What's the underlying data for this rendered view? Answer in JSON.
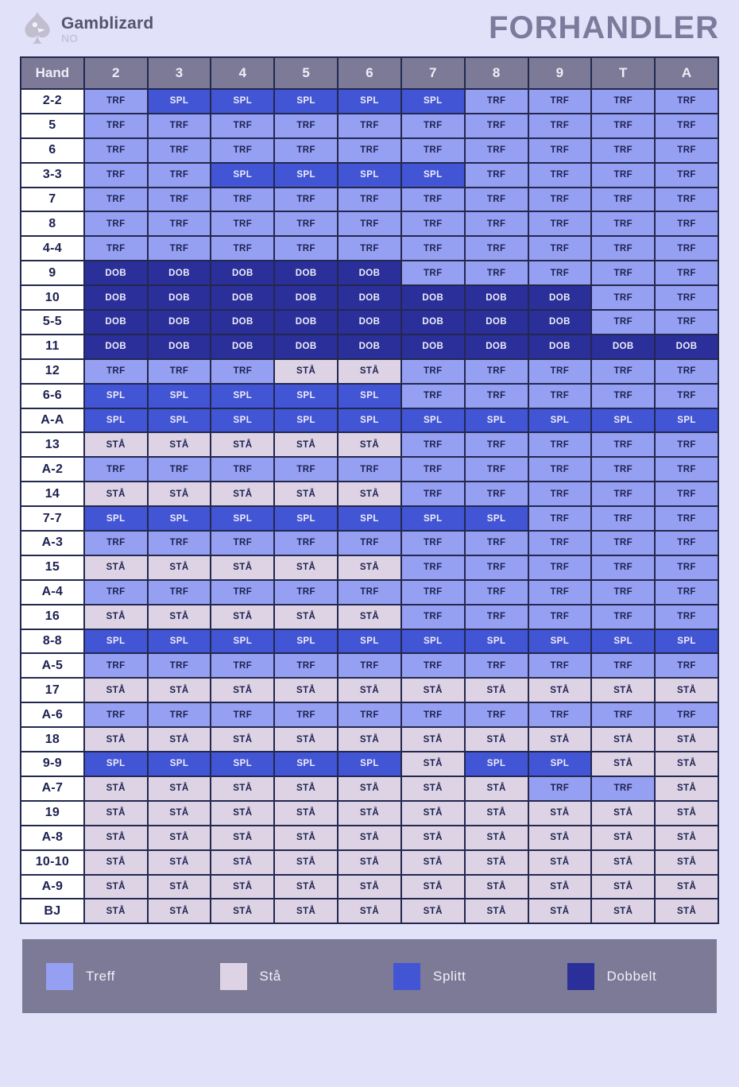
{
  "logo": {
    "brand": "Gamblizard",
    "country": "NO"
  },
  "title": "FORHANDLER",
  "colors": {
    "page_bg": "#E1E2FA",
    "panel": "#7C7A96",
    "border": "#23284F",
    "hand_bg": "#FFFFFF",
    "text_dark": "#1C2150",
    "text_light": "#EFEDF8",
    "TRF": "#96A0F2",
    "STÅ": "#DDD3E4",
    "SPL": "#4255D5",
    "DOB": "#2A2F9A"
  },
  "chart_data": {
    "type": "table",
    "title": "FORHANDLER",
    "corner_label": "Hand",
    "dealer_cards": [
      "2",
      "3",
      "4",
      "5",
      "6",
      "7",
      "8",
      "9",
      "T",
      "A"
    ],
    "rows": [
      {
        "hand": "2-2",
        "actions": [
          "TRF",
          "SPL",
          "SPL",
          "SPL",
          "SPL",
          "SPL",
          "TRF",
          "TRF",
          "TRF",
          "TRF"
        ]
      },
      {
        "hand": "5",
        "actions": [
          "TRF",
          "TRF",
          "TRF",
          "TRF",
          "TRF",
          "TRF",
          "TRF",
          "TRF",
          "TRF",
          "TRF"
        ]
      },
      {
        "hand": "6",
        "actions": [
          "TRF",
          "TRF",
          "TRF",
          "TRF",
          "TRF",
          "TRF",
          "TRF",
          "TRF",
          "TRF",
          "TRF"
        ]
      },
      {
        "hand": "3-3",
        "actions": [
          "TRF",
          "TRF",
          "SPL",
          "SPL",
          "SPL",
          "SPL",
          "TRF",
          "TRF",
          "TRF",
          "TRF"
        ]
      },
      {
        "hand": "7",
        "actions": [
          "TRF",
          "TRF",
          "TRF",
          "TRF",
          "TRF",
          "TRF",
          "TRF",
          "TRF",
          "TRF",
          "TRF"
        ]
      },
      {
        "hand": "8",
        "actions": [
          "TRF",
          "TRF",
          "TRF",
          "TRF",
          "TRF",
          "TRF",
          "TRF",
          "TRF",
          "TRF",
          "TRF"
        ]
      },
      {
        "hand": "4-4",
        "actions": [
          "TRF",
          "TRF",
          "TRF",
          "TRF",
          "TRF",
          "TRF",
          "TRF",
          "TRF",
          "TRF",
          "TRF"
        ]
      },
      {
        "hand": "9",
        "actions": [
          "DOB",
          "DOB",
          "DOB",
          "DOB",
          "DOB",
          "TRF",
          "TRF",
          "TRF",
          "TRF",
          "TRF"
        ]
      },
      {
        "hand": "10",
        "actions": [
          "DOB",
          "DOB",
          "DOB",
          "DOB",
          "DOB",
          "DOB",
          "DOB",
          "DOB",
          "TRF",
          "TRF"
        ]
      },
      {
        "hand": "5-5",
        "actions": [
          "DOB",
          "DOB",
          "DOB",
          "DOB",
          "DOB",
          "DOB",
          "DOB",
          "DOB",
          "TRF",
          "TRF"
        ]
      },
      {
        "hand": "11",
        "actions": [
          "DOB",
          "DOB",
          "DOB",
          "DOB",
          "DOB",
          "DOB",
          "DOB",
          "DOB",
          "DOB",
          "DOB"
        ]
      },
      {
        "hand": "12",
        "actions": [
          "TRF",
          "TRF",
          "TRF",
          "STÅ",
          "STÅ",
          "TRF",
          "TRF",
          "TRF",
          "TRF",
          "TRF"
        ]
      },
      {
        "hand": "6-6",
        "actions": [
          "SPL",
          "SPL",
          "SPL",
          "SPL",
          "SPL",
          "TRF",
          "TRF",
          "TRF",
          "TRF",
          "TRF"
        ]
      },
      {
        "hand": "A-A",
        "actions": [
          "SPL",
          "SPL",
          "SPL",
          "SPL",
          "SPL",
          "SPL",
          "SPL",
          "SPL",
          "SPL",
          "SPL"
        ]
      },
      {
        "hand": "13",
        "actions": [
          "STÅ",
          "STÅ",
          "STÅ",
          "STÅ",
          "STÅ",
          "TRF",
          "TRF",
          "TRF",
          "TRF",
          "TRF"
        ]
      },
      {
        "hand": "A-2",
        "actions": [
          "TRF",
          "TRF",
          "TRF",
          "TRF",
          "TRF",
          "TRF",
          "TRF",
          "TRF",
          "TRF",
          "TRF"
        ]
      },
      {
        "hand": "14",
        "actions": [
          "STÅ",
          "STÅ",
          "STÅ",
          "STÅ",
          "STÅ",
          "TRF",
          "TRF",
          "TRF",
          "TRF",
          "TRF"
        ]
      },
      {
        "hand": "7-7",
        "actions": [
          "SPL",
          "SPL",
          "SPL",
          "SPL",
          "SPL",
          "SPL",
          "SPL",
          "TRF",
          "TRF",
          "TRF"
        ]
      },
      {
        "hand": "A-3",
        "actions": [
          "TRF",
          "TRF",
          "TRF",
          "TRF",
          "TRF",
          "TRF",
          "TRF",
          "TRF",
          "TRF",
          "TRF"
        ]
      },
      {
        "hand": "15",
        "actions": [
          "STÅ",
          "STÅ",
          "STÅ",
          "STÅ",
          "STÅ",
          "TRF",
          "TRF",
          "TRF",
          "TRF",
          "TRF"
        ]
      },
      {
        "hand": "A-4",
        "actions": [
          "TRF",
          "TRF",
          "TRF",
          "TRF",
          "TRF",
          "TRF",
          "TRF",
          "TRF",
          "TRF",
          "TRF"
        ]
      },
      {
        "hand": "16",
        "actions": [
          "STÅ",
          "STÅ",
          "STÅ",
          "STÅ",
          "STÅ",
          "TRF",
          "TRF",
          "TRF",
          "TRF",
          "TRF"
        ]
      },
      {
        "hand": "8-8",
        "actions": [
          "SPL",
          "SPL",
          "SPL",
          "SPL",
          "SPL",
          "SPL",
          "SPL",
          "SPL",
          "SPL",
          "SPL"
        ]
      },
      {
        "hand": "A-5",
        "actions": [
          "TRF",
          "TRF",
          "TRF",
          "TRF",
          "TRF",
          "TRF",
          "TRF",
          "TRF",
          "TRF",
          "TRF"
        ]
      },
      {
        "hand": "17",
        "actions": [
          "STÅ",
          "STÅ",
          "STÅ",
          "STÅ",
          "STÅ",
          "STÅ",
          "STÅ",
          "STÅ",
          "STÅ",
          "STÅ"
        ]
      },
      {
        "hand": "A-6",
        "actions": [
          "TRF",
          "TRF",
          "TRF",
          "TRF",
          "TRF",
          "TRF",
          "TRF",
          "TRF",
          "TRF",
          "TRF"
        ]
      },
      {
        "hand": "18",
        "actions": [
          "STÅ",
          "STÅ",
          "STÅ",
          "STÅ",
          "STÅ",
          "STÅ",
          "STÅ",
          "STÅ",
          "STÅ",
          "STÅ"
        ]
      },
      {
        "hand": "9-9",
        "actions": [
          "SPL",
          "SPL",
          "SPL",
          "SPL",
          "SPL",
          "STÅ",
          "SPL",
          "SPL",
          "STÅ",
          "STÅ"
        ]
      },
      {
        "hand": "A-7",
        "actions": [
          "STÅ",
          "STÅ",
          "STÅ",
          "STÅ",
          "STÅ",
          "STÅ",
          "STÅ",
          "TRF",
          "TRF",
          "STÅ"
        ]
      },
      {
        "hand": "19",
        "actions": [
          "STÅ",
          "STÅ",
          "STÅ",
          "STÅ",
          "STÅ",
          "STÅ",
          "STÅ",
          "STÅ",
          "STÅ",
          "STÅ"
        ]
      },
      {
        "hand": "A-8",
        "actions": [
          "STÅ",
          "STÅ",
          "STÅ",
          "STÅ",
          "STÅ",
          "STÅ",
          "STÅ",
          "STÅ",
          "STÅ",
          "STÅ"
        ]
      },
      {
        "hand": "10-10",
        "actions": [
          "STÅ",
          "STÅ",
          "STÅ",
          "STÅ",
          "STÅ",
          "STÅ",
          "STÅ",
          "STÅ",
          "STÅ",
          "STÅ"
        ]
      },
      {
        "hand": "A-9",
        "actions": [
          "STÅ",
          "STÅ",
          "STÅ",
          "STÅ",
          "STÅ",
          "STÅ",
          "STÅ",
          "STÅ",
          "STÅ",
          "STÅ"
        ]
      },
      {
        "hand": "BJ",
        "actions": [
          "STÅ",
          "STÅ",
          "STÅ",
          "STÅ",
          "STÅ",
          "STÅ",
          "STÅ",
          "STÅ",
          "STÅ",
          "STÅ"
        ]
      }
    ],
    "legend_position": "bottom"
  },
  "legend": {
    "items": [
      {
        "code": "TRF",
        "label": "Treff"
      },
      {
        "code": "STÅ",
        "label": "Stå"
      },
      {
        "code": "SPL",
        "label": "Splitt"
      },
      {
        "code": "DOB",
        "label": "Dobbelt"
      }
    ]
  }
}
